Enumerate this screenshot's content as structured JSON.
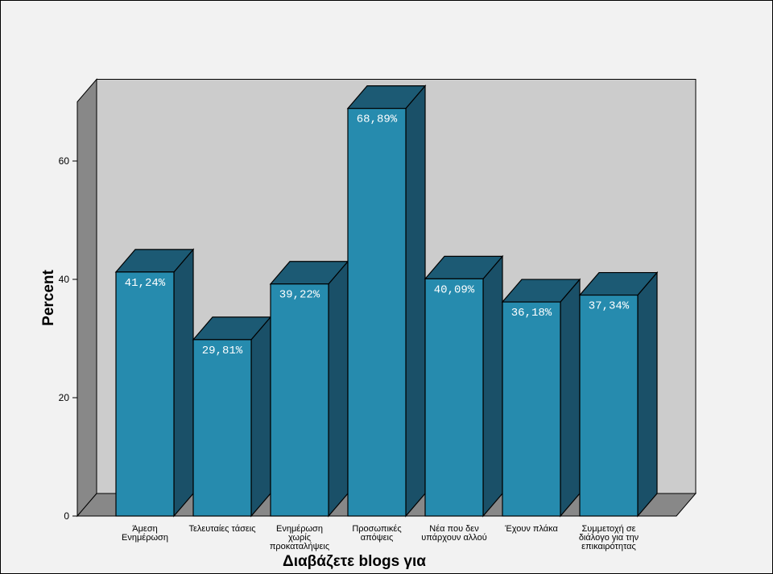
{
  "chart_data": {
    "type": "bar",
    "xlabel": "Διαβάζετε blogs για",
    "ylabel": "Percent",
    "ylim": [
      0,
      70
    ],
    "yticks": [
      0,
      20,
      40,
      60
    ],
    "categories": [
      [
        "Άμεση",
        "Ενημέρωση"
      ],
      [
        "Τελευταίες τάσεις"
      ],
      [
        "Ενημέρωση",
        "χωρίς",
        "προκαταλήψεις"
      ],
      [
        "Προσωπικές",
        "απόψεις"
      ],
      [
        "Νέα που δεν",
        "υπάρχουν αλλού"
      ],
      [
        "Έχουν πλάκα"
      ],
      [
        "Συμμετοχή σε",
        "διάλογο για την",
        "επικαιρότητας"
      ]
    ],
    "values": [
      41.24,
      29.81,
      39.22,
      68.89,
      40.09,
      36.18,
      37.34
    ],
    "data_labels": [
      "41,24%",
      "29,81%",
      "39,22%",
      "68,89%",
      "40,09%",
      "36,18%",
      "37,34%"
    ],
    "grid": false,
    "colors": {
      "bar_front": "#268bae",
      "bar_side": "#1a5068",
      "bar_top": "#1c5a74",
      "wall_back": "#cccccc",
      "wall_side": "#888888",
      "floor": "#888888",
      "background": "#f2f2f2"
    }
  }
}
